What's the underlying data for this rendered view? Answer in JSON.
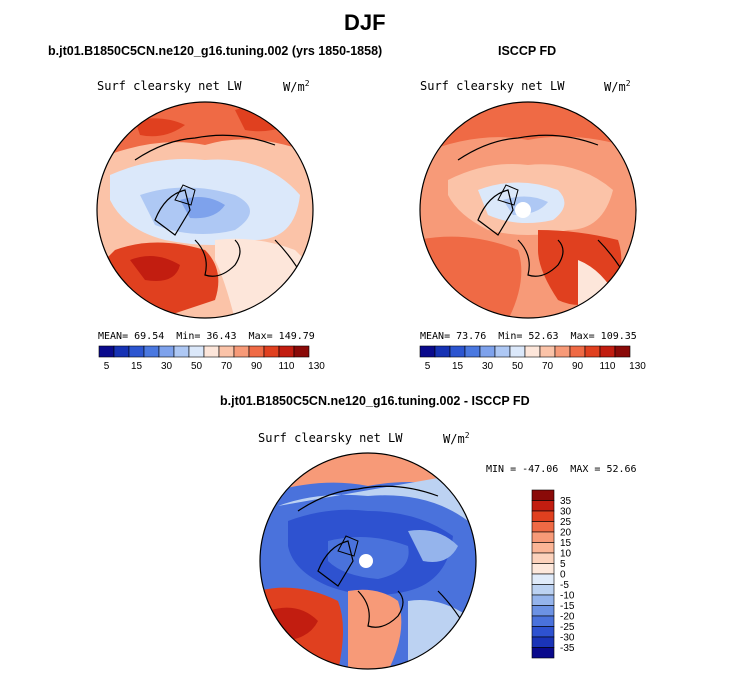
{
  "page_title": "DJF",
  "chart_data": [
    {
      "type": "polar-map",
      "title": "b.jt01.B1850C5CN.ne120_g16.tuning.002 (yrs 1850-1858)",
      "variable": "Surf clearsky net LW",
      "units_prefix": "W/m",
      "units_power": "2",
      "stats": {
        "mean_label": "MEAN=",
        "mean": "69.54",
        "min_label": "Min=",
        "min": "36.43",
        "max_label": "Max=",
        "max": "149.79"
      },
      "colorbar": {
        "orientation": "horizontal",
        "tick_labels": [
          "5",
          "15",
          "30",
          "50",
          "70",
          "90",
          "110",
          "130"
        ],
        "colors": [
          "#0a0a8c",
          "#1632b4",
          "#2c55d0",
          "#4a78e0",
          "#7ea2ec",
          "#aec8f4",
          "#dbe8fa",
          "#fde6da",
          "#fbc3a8",
          "#f79a78",
          "#ef6a45",
          "#e0401f",
          "#c21d10",
          "#8a0a08"
        ]
      }
    },
    {
      "type": "polar-map",
      "title": "ISCCP FD",
      "variable": "Surf clearsky net LW",
      "units_prefix": "W/m",
      "units_power": "2",
      "stats": {
        "mean_label": "MEAN=",
        "mean": "73.76",
        "min_label": "Min=",
        "min": "52.63",
        "max_label": "Max=",
        "max": "109.35"
      },
      "colorbar": {
        "orientation": "horizontal",
        "tick_labels": [
          "5",
          "15",
          "30",
          "50",
          "70",
          "90",
          "110",
          "130"
        ],
        "colors": [
          "#0a0a8c",
          "#1632b4",
          "#2c55d0",
          "#4a78e0",
          "#7ea2ec",
          "#aec8f4",
          "#dbe8fa",
          "#fde6da",
          "#fbc3a8",
          "#f79a78",
          "#ef6a45",
          "#e0401f",
          "#c21d10",
          "#8a0a08"
        ]
      }
    },
    {
      "type": "polar-map",
      "title": "b.jt01.B1850C5CN.ne120_g16.tuning.002 - ISCCP FD",
      "variable": "Surf clearsky net LW",
      "units_prefix": "W/m",
      "units_power": "2",
      "stats": {
        "min_label": "MIN =",
        "min": "-47.06",
        "max_label": "MAX =",
        "max": "52.66"
      },
      "colorbar": {
        "orientation": "vertical",
        "tick_labels": [
          "35",
          "30",
          "25",
          "20",
          "15",
          "10",
          "5",
          "0",
          "-5",
          "-10",
          "-15",
          "-20",
          "-25",
          "-30",
          "-35"
        ],
        "colors": [
          "#8a0a08",
          "#c21d10",
          "#e0401f",
          "#ef6a45",
          "#f79a78",
          "#fbb596",
          "#fcd2bc",
          "#fde8dc",
          "#e0ebfa",
          "#bcd2f2",
          "#95b4ec",
          "#6c92e4",
          "#4a72dc",
          "#2e52d0",
          "#1a34b8",
          "#0a0a8c"
        ]
      }
    }
  ]
}
